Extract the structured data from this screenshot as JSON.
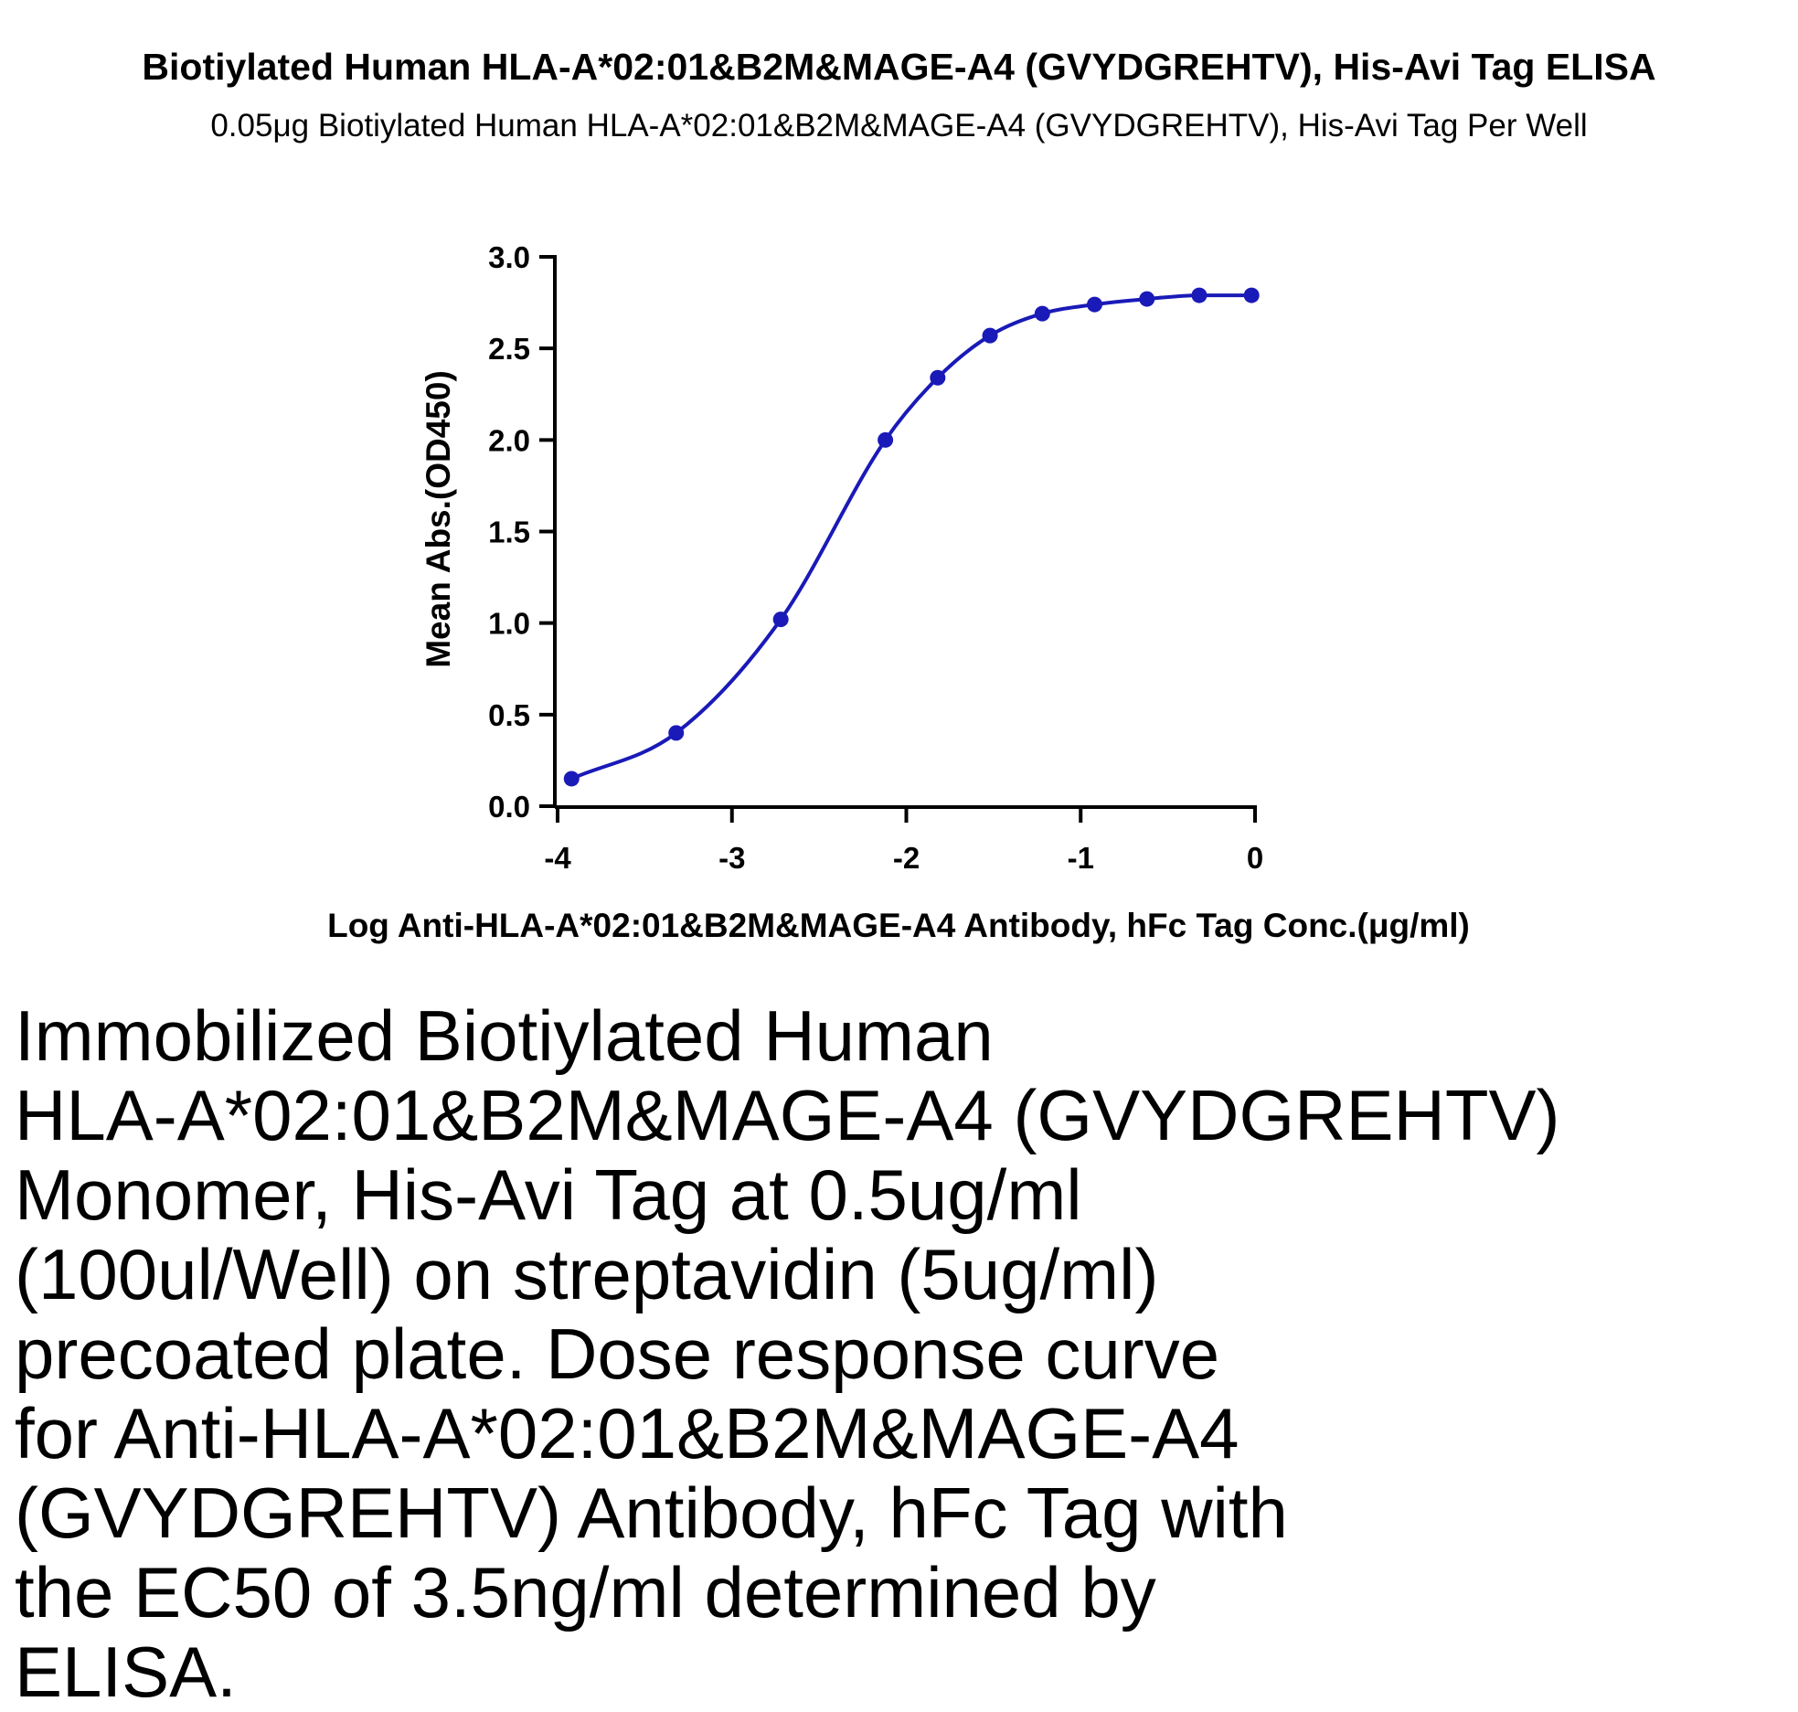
{
  "chart_data": {
    "type": "line",
    "title": "Biotiylated Human HLA-A*02:01&B2M&MAGE-A4 (GVYDGREHTV), His-Avi Tag ELISA",
    "subtitle": "0.05μg Biotiylated Human HLA-A*02:01&B2M&MAGE-A4 (GVYDGREHTV), His-Avi Tag Per Well",
    "xlabel": "Log Anti-HLA-A*02:01&B2M&MAGE-A4 Antibody, hFc Tag Conc.(μg/ml)",
    "ylabel": "Mean Abs.(OD450)",
    "xlim": [
      -4,
      0
    ],
    "ylim": [
      0,
      3
    ],
    "xticks": [
      "-4",
      "-3",
      "-2",
      "-1",
      "0"
    ],
    "yticks": [
      "0.0",
      "0.5",
      "1.0",
      "1.5",
      "2.0",
      "2.5",
      "3.0"
    ],
    "grid": false,
    "series": [
      {
        "color": "#1a1ab8",
        "x": [
          -3.92,
          -3.32,
          -2.72,
          -2.12,
          -1.82,
          -1.52,
          -1.22,
          -0.92,
          -0.62,
          -0.32,
          -0.02
        ],
        "y": [
          0.15,
          0.4,
          1.02,
          2.0,
          2.34,
          2.57,
          2.69,
          2.74,
          2.77,
          2.79,
          2.79
        ]
      }
    ]
  },
  "caption": "Immobilized Biotiylated Human\nHLA-A*02:01&B2M&MAGE-A4 (GVYDGREHTV)\nMonomer, His-Avi Tag at 0.5ug/ml\n(100ul/Well) on streptavidin (5ug/ml)\nprecoated plate. Dose response curve\nfor Anti-HLA-A*02:01&B2M&MAGE-A4\n(GVYDGREHTV) Antibody, hFc Tag with\nthe EC50 of 3.5ng/ml determined by\nELISA."
}
